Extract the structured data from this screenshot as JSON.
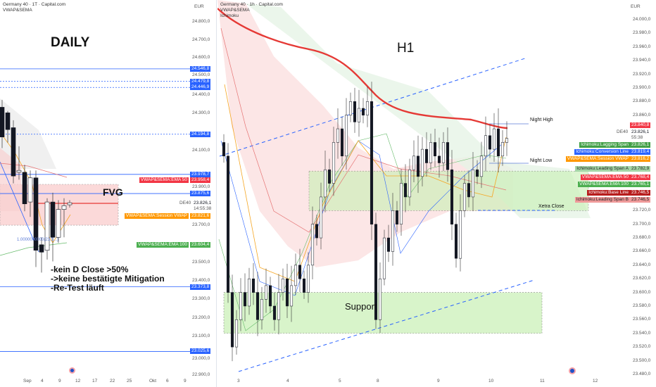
{
  "left": {
    "title": "Germany 40 · 1T · Capital.com",
    "indicator": "VWAP&SEMA",
    "currency": "EUR",
    "label_daily": "DAILY",
    "label_fvg": "FVG",
    "notes": [
      "-kein D Close >50%",
      "->keine bestätigte Mitigation",
      "-Re-Test läuft"
    ],
    "fib_label": "1.0000000000(23,5...)",
    "symbol": "DE40",
    "price": "23.826,1",
    "countdown": "14:55:38",
    "y_ticks": [
      "24.800,0",
      "24.700,0",
      "24.600,0",
      "24.500,0",
      "24.400,0",
      "24.300,0",
      "24.100,0",
      "23.900,0",
      "23.700,0",
      "23.500,0",
      "23.400,0",
      "23.300,0",
      "23.200,0",
      "23.100,0",
      "23.000,0",
      "22.900,0"
    ],
    "x_ticks": [
      "Sep",
      "4",
      "9",
      "12",
      "17",
      "22",
      "25",
      "Okt",
      "6",
      "9"
    ],
    "levels": [
      {
        "v": "24.546,8",
        "style": "solid"
      },
      {
        "v": "24.479,8",
        "style": "dotted"
      },
      {
        "v": "24.446,9",
        "style": "dotted"
      },
      {
        "v": "24.194,8",
        "style": "dotted"
      },
      {
        "v": "23.978,7",
        "style": "solid"
      },
      {
        "v": "23.875,6",
        "style": "solid"
      },
      {
        "v": "23.373,8",
        "style": "solid"
      },
      {
        "v": "23.025,6",
        "style": "solid"
      }
    ],
    "ind_labels": [
      {
        "name": "VWAP&SEMA:EMA 50",
        "value": "23.958,4",
        "color": "#f23645"
      },
      {
        "name": "VWAP&SEMA:Session VWAP",
        "value": "23.821,6",
        "color": "#ff9800"
      },
      {
        "name": "VWAP&SEMA:EMA 100",
        "value": "23.604,4",
        "color": "#4caf50"
      }
    ]
  },
  "right": {
    "title": "Germany 40 · 1h · Capital.com",
    "indicator": "VWAP&SEMA",
    "indicator2": "Ichimoku",
    "currency": "EUR",
    "label_h1": "H1",
    "label_support": "Support",
    "night_high": "Night High",
    "night_low": "Night Low",
    "xetra_close": "Xetra Close",
    "symbol": "DE40",
    "price": "23.826,1",
    "countdown": "55:38",
    "price_marker": "23.840,8",
    "y_ticks": [
      "24.000,0",
      "23.980,0",
      "23.960,0",
      "23.940,0",
      "23.920,0",
      "23.900,0",
      "23.880,0",
      "23.860,0",
      "23.720,0",
      "23.700,0",
      "23.680,0",
      "23.660,0",
      "23.640,0",
      "23.620,0",
      "23.600,0",
      "23.580,0",
      "23.560,0",
      "23.540,0",
      "23.520,0",
      "23.500,0",
      "23.480,0"
    ],
    "x_ticks": [
      "3",
      "4",
      "5",
      "8",
      "9",
      "10",
      "11",
      "12"
    ],
    "ind_labels": [
      {
        "name": "Ichimoku:Lagging Span",
        "value": "23.826,1",
        "color": "#43a047"
      },
      {
        "name": "Ichimoku:Conversion Line",
        "value": "23.819,4",
        "color": "#2962ff"
      },
      {
        "name": "VWAP&SEMA:Session VWAP",
        "value": "23.816,2",
        "color": "#ff9800"
      },
      {
        "name": "Ichimoku:Leading Span A",
        "value": "23.782,9",
        "color": "#a5d6a7"
      },
      {
        "name": "VWAP&SEMA:EMA 50",
        "value": "23.768,4",
        "color": "#f23645"
      },
      {
        "name": "VWAP&SEMA:EMA 100",
        "value": "23.765,1",
        "color": "#4caf50"
      },
      {
        "name": "Ichimoku:Base Line",
        "value": "23.746,5",
        "color": "#b71c1c"
      },
      {
        "name": "Ichimoku:Leading Span B",
        "value": "23.746,5",
        "color": "#ef9a9a"
      }
    ]
  },
  "chart_data": [
    {
      "type": "candlestick",
      "timeframe": "1T",
      "yunit": "EUR",
      "ylim": [
        22900,
        24800
      ],
      "ohlc": [
        [
          24340,
          24380,
          24120,
          24180
        ],
        [
          24310,
          24320,
          24150,
          24220
        ],
        [
          24230,
          24270,
          23930,
          23970
        ],
        [
          23990,
          24130,
          23950,
          24000
        ],
        [
          23990,
          24030,
          23780,
          23820
        ],
        [
          23830,
          24000,
          23750,
          23960
        ],
        [
          23960,
          24000,
          23480,
          23570
        ],
        [
          23600,
          23640,
          23450,
          23560
        ],
        [
          23570,
          23850,
          23520,
          23830
        ],
        [
          23830,
          23880,
          23510,
          23640
        ],
        [
          23640,
          23840,
          23610,
          23790
        ],
        [
          23790,
          23850,
          23640,
          23810
        ],
        [
          23815,
          23840,
          23800,
          23826
        ]
      ],
      "fvg_zone": [
        23705,
        23925
      ]
    },
    {
      "type": "candlestick",
      "timeframe": "1h",
      "yunit": "EUR",
      "ylim": [
        23480,
        24000
      ],
      "closes": [
        23800,
        23600,
        23520,
        23560,
        23600,
        23580,
        23620,
        23600,
        23560,
        23590,
        23610,
        23580,
        23560,
        23600,
        23620,
        23580,
        23610,
        23640,
        23620,
        23600,
        23640,
        23700,
        23680,
        23740,
        23780,
        23760,
        23820,
        23840,
        23800,
        23860,
        23880,
        23850,
        23870,
        23860,
        23880,
        23700,
        23560,
        23620,
        23680,
        23660,
        23720,
        23700,
        23760,
        23740,
        23780,
        23800,
        23770,
        23810,
        23790,
        23820,
        23800,
        23790,
        23820,
        23780,
        23700,
        23650,
        23720,
        23760,
        23740,
        23780,
        23770,
        23800,
        23830,
        23810,
        23840,
        23800,
        23820,
        23826
      ],
      "support_zone": [
        23540,
        23600
      ],
      "resistance_zone": [
        23720,
        23780
      ],
      "night_high": 23845,
      "night_low": 23786,
      "xetra_close": 23724
    }
  ],
  "colors": {
    "bull": "#ffffff",
    "bear": "#131722",
    "ema50": "#e53935",
    "level": "#2962ff",
    "zone_green": "#c8f0b4",
    "zone_red": "#f8c8c8"
  }
}
